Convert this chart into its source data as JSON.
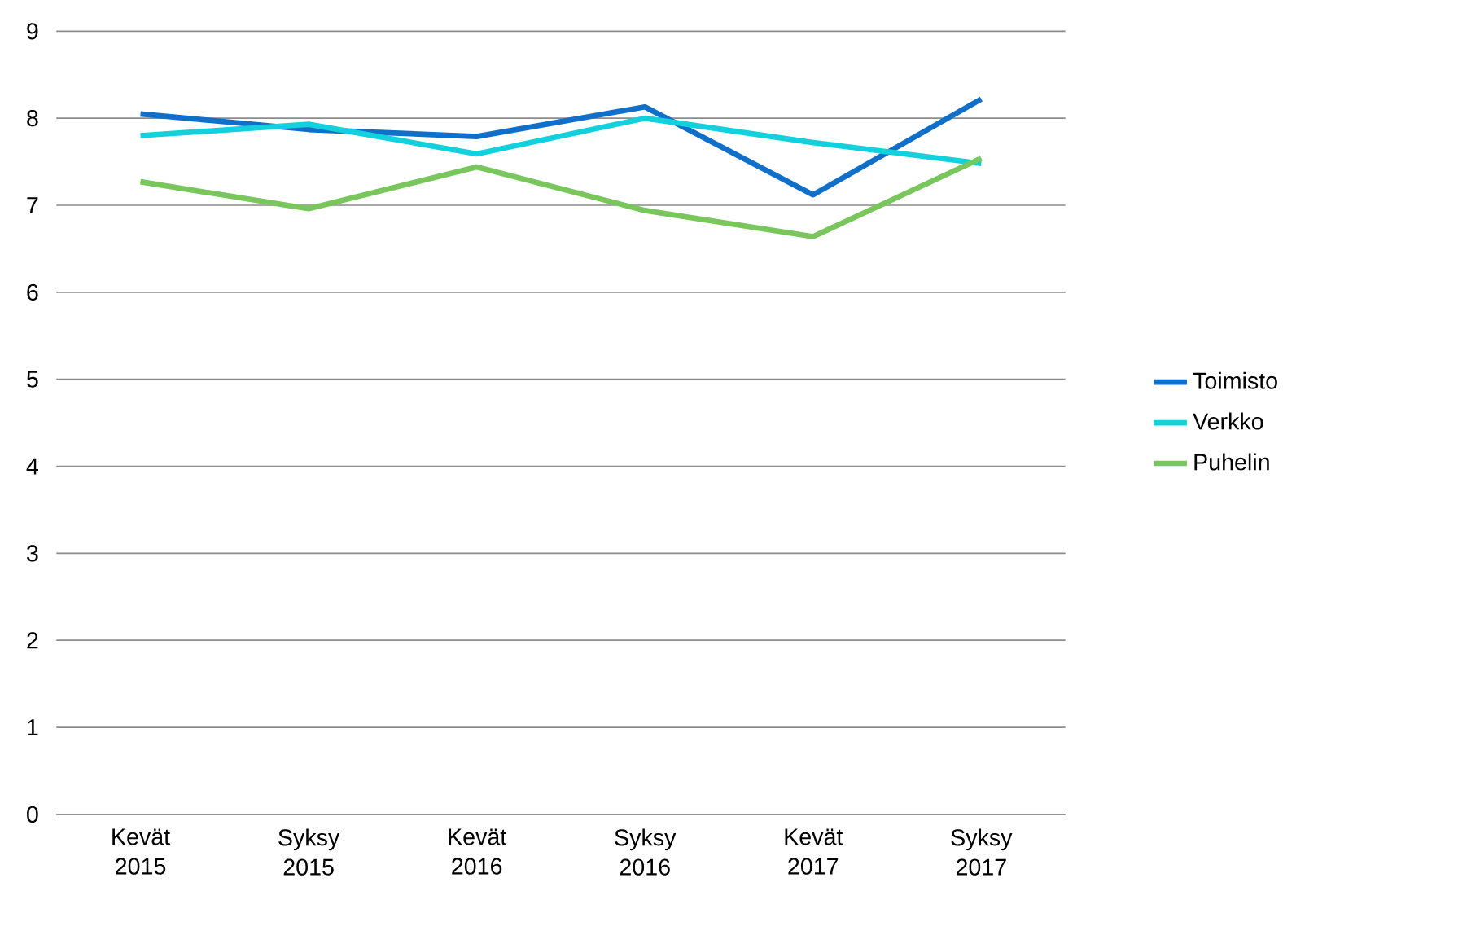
{
  "chart_data": {
    "type": "line",
    "categories": [
      "Kevät 2015",
      "Syksy 2015",
      "Kevät 2016",
      "Syksy 2016",
      "Kevät 2017",
      "Syksy 2017"
    ],
    "series": [
      {
        "name": "Toimisto",
        "color": "#0f6fc9",
        "values": [
          8.05,
          7.87,
          7.79,
          8.13,
          7.12,
          8.22
        ]
      },
      {
        "name": "Verkko",
        "color": "#12d0dc",
        "values": [
          7.8,
          7.93,
          7.59,
          8.0,
          7.72,
          7.48
        ]
      },
      {
        "name": "Puhelin",
        "color": "#79c65d",
        "values": [
          7.27,
          6.96,
          7.44,
          6.94,
          6.64,
          7.54
        ]
      }
    ],
    "ylim": [
      0,
      9
    ],
    "yticks": [
      0,
      1,
      2,
      3,
      4,
      5,
      6,
      7,
      8,
      9
    ],
    "grid": "y",
    "legend": "right",
    "marker": "none",
    "line_style": "solid"
  }
}
